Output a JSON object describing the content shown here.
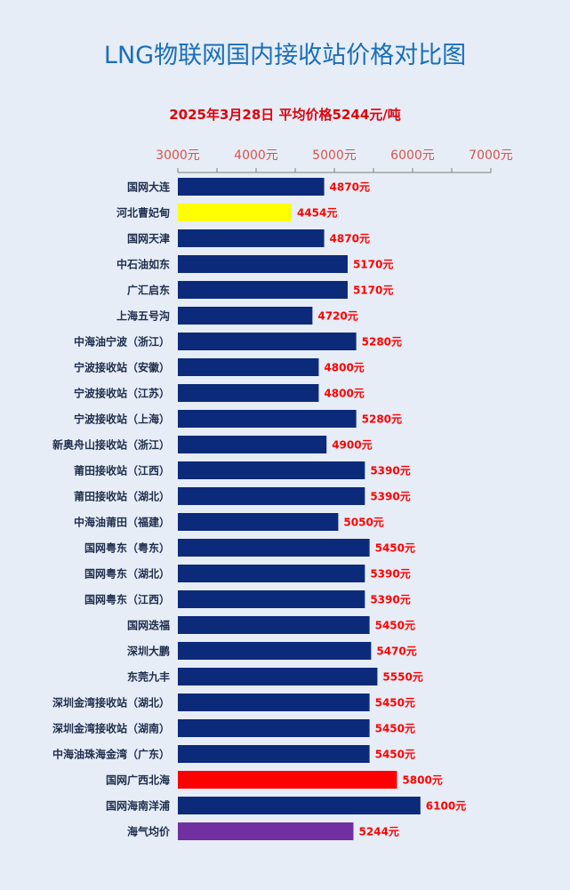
{
  "chart_data": {
    "type": "bar",
    "orientation": "horizontal",
    "title": "LNG物联网国内接收站价格对比图",
    "subtitle": "2025年3月28日 平均价格5244元/吨",
    "xlim": [
      3000,
      7000
    ],
    "ticks": [
      {
        "value": 3000,
        "label": "3000元"
      },
      {
        "value": 4000,
        "label": "4000元"
      },
      {
        "value": 5000,
        "label": "5000元"
      },
      {
        "value": 6000,
        "label": "6000元"
      },
      {
        "value": 7000,
        "label": "7000元"
      }
    ],
    "bars": [
      {
        "name": "国网大连",
        "value": 4870,
        "label": "4870元",
        "color": "#0c2a7a"
      },
      {
        "name": "河北曹妃甸",
        "value": 4454,
        "label": "4454元",
        "color": "#ffff00"
      },
      {
        "name": "国网天津",
        "value": 4870,
        "label": "4870元",
        "color": "#0c2a7a"
      },
      {
        "name": "中石油如东",
        "value": 5170,
        "label": "5170元",
        "color": "#0c2a7a"
      },
      {
        "name": "广汇启东",
        "value": 5170,
        "label": "5170元",
        "color": "#0c2a7a"
      },
      {
        "name": "上海五号沟",
        "value": 4720,
        "label": "4720元",
        "color": "#0c2a7a"
      },
      {
        "name": "中海油宁波（浙江）",
        "value": 5280,
        "label": "5280元",
        "color": "#0c2a7a"
      },
      {
        "name": "宁波接收站（安徽）",
        "value": 4800,
        "label": "4800元",
        "color": "#0c2a7a"
      },
      {
        "name": "宁波接收站（江苏）",
        "value": 4800,
        "label": "4800元",
        "color": "#0c2a7a"
      },
      {
        "name": "宁波接收站（上海）",
        "value": 5280,
        "label": "5280元",
        "color": "#0c2a7a"
      },
      {
        "name": "新奥舟山接收站（浙江）",
        "value": 4900,
        "label": "4900元",
        "color": "#0c2a7a"
      },
      {
        "name": "莆田接收站（江西）",
        "value": 5390,
        "label": "5390元",
        "color": "#0c2a7a"
      },
      {
        "name": "莆田接收站（湖北）",
        "value": 5390,
        "label": "5390元",
        "color": "#0c2a7a"
      },
      {
        "name": "中海油莆田（福建）",
        "value": 5050,
        "label": "5050元",
        "color": "#0c2a7a"
      },
      {
        "name": "国网粤东（粤东）",
        "value": 5450,
        "label": "5450元",
        "color": "#0c2a7a"
      },
      {
        "name": "国网粤东（湖北）",
        "value": 5390,
        "label": "5390元",
        "color": "#0c2a7a"
      },
      {
        "name": "国网粤东（江西）",
        "value": 5390,
        "label": "5390元",
        "color": "#0c2a7a"
      },
      {
        "name": "国网迭福",
        "value": 5450,
        "label": "5450元",
        "color": "#0c2a7a"
      },
      {
        "name": "深圳大鹏",
        "value": 5470,
        "label": "5470元",
        "color": "#0c2a7a"
      },
      {
        "name": "东莞九丰",
        "value": 5550,
        "label": "5550元",
        "color": "#0c2a7a"
      },
      {
        "name": "深圳金湾接收站（湖北）",
        "value": 5450,
        "label": "5450元",
        "color": "#0c2a7a"
      },
      {
        "name": "深圳金湾接收站（湖南）",
        "value": 5450,
        "label": "5450元",
        "color": "#0c2a7a"
      },
      {
        "name": "中海油珠海金湾（广东）",
        "value": 5450,
        "label": "5450元",
        "color": "#0c2a7a"
      },
      {
        "name": "国网广西北海",
        "value": 5800,
        "label": "5800元",
        "color": "#ff0000"
      },
      {
        "name": "国网海南洋浦",
        "value": 6100,
        "label": "6100元",
        "color": "#0c2a7a"
      },
      {
        "name": "海气均价",
        "value": 5244,
        "label": "5244元",
        "color": "#7030a0"
      }
    ],
    "grid": false,
    "legend": "none"
  },
  "colors": {
    "background": "#e6edf6",
    "title": "#1a6fb8",
    "subtitle": "#e0000b",
    "tick_label": "#d9534f",
    "value_label": "#ff0000",
    "category_label": "#1f2d4e",
    "axis": "#7f7f7f"
  }
}
